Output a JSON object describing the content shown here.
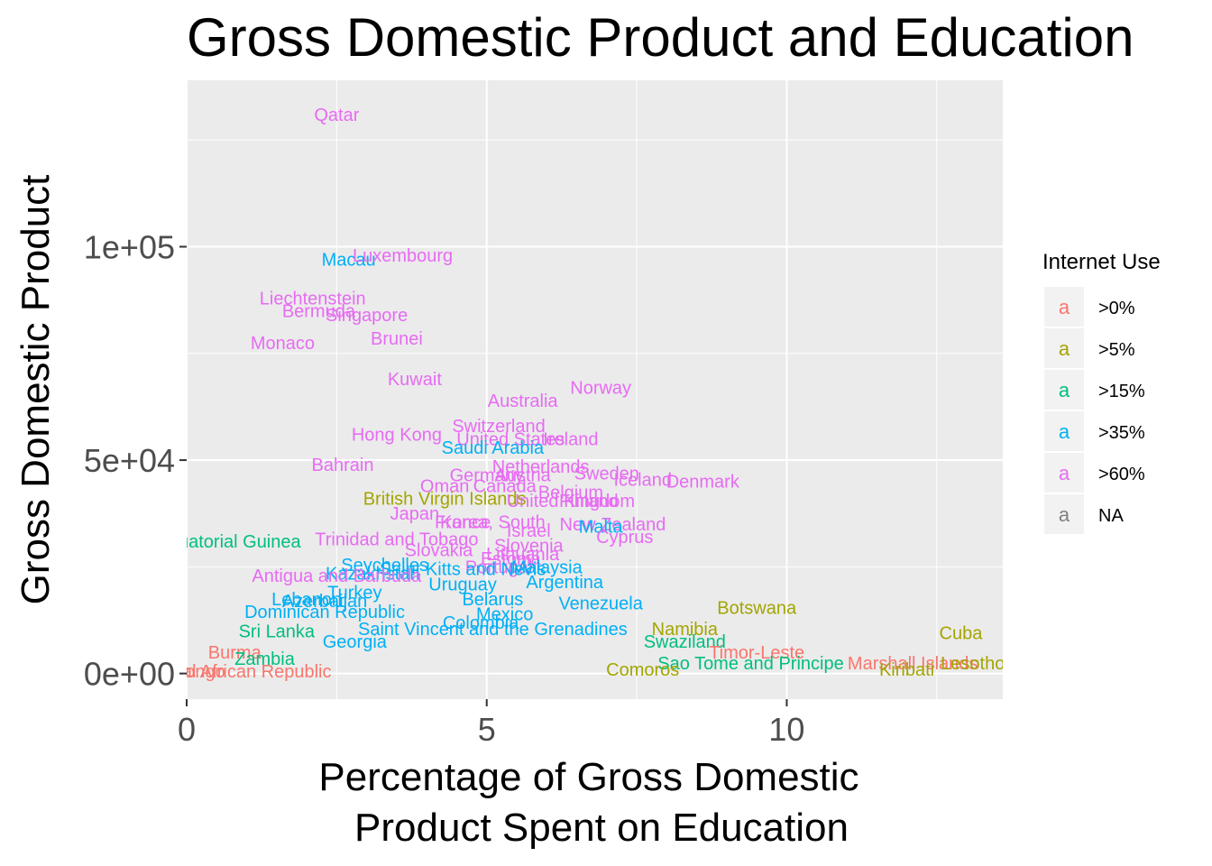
{
  "chart_data": {
    "type": "scatter",
    "title": "Gross Domestic Product and Education",
    "xlabel_lines": [
      "Percentage of Gross Domestic",
      "Product Spent on Education"
    ],
    "ylabel": "Gross Domestic Product",
    "xlim": [
      0,
      13.6
    ],
    "ylim": [
      -6000,
      139000
    ],
    "x_ticks": [
      {
        "value": 0,
        "label": "0"
      },
      {
        "value": 5,
        "label": "5"
      },
      {
        "value": 10,
        "label": "10"
      }
    ],
    "y_ticks": [
      {
        "value": 0,
        "label": "0e+00"
      },
      {
        "value": 50000,
        "label": "5e+04"
      },
      {
        "value": 100000,
        "label": "1e+05"
      }
    ],
    "grid": true,
    "legend": {
      "title": "Internet Use",
      "position": "right",
      "key_glyph": "a",
      "entries": [
        {
          "label": ">0%",
          "color": "#F8766D"
        },
        {
          "label": ">5%",
          "color": "#A3A500"
        },
        {
          "label": ">15%",
          "color": "#00BF7D"
        },
        {
          "label": ">35%",
          "color": "#00B0F6"
        },
        {
          "label": ">60%",
          "color": "#E76BF3"
        },
        {
          "label": "NA",
          "color": "#7F7F7F"
        }
      ]
    },
    "points": [
      {
        "label": "Qatar",
        "x": 2.5,
        "y": 131000,
        "group": ">60%"
      },
      {
        "label": "Macau",
        "x": 2.7,
        "y": 97000,
        "group": ">35%"
      },
      {
        "label": "Luxembourg",
        "x": 3.6,
        "y": 98000,
        "group": ">60%"
      },
      {
        "label": "Liechtenstein",
        "x": 2.1,
        "y": 88000,
        "group": ">60%"
      },
      {
        "label": "Bermuda",
        "x": 2.2,
        "y": 85000,
        "group": ">60%"
      },
      {
        "label": "Singapore",
        "x": 3.0,
        "y": 84000,
        "group": ">60%"
      },
      {
        "label": "Monaco",
        "x": 1.6,
        "y": 77500,
        "group": ">60%"
      },
      {
        "label": "Brunei",
        "x": 3.5,
        "y": 78500,
        "group": ">60%"
      },
      {
        "label": "Kuwait",
        "x": 3.8,
        "y": 69000,
        "group": ">60%"
      },
      {
        "label": "Norway",
        "x": 6.9,
        "y": 67000,
        "group": ">60%"
      },
      {
        "label": "Australia",
        "x": 5.6,
        "y": 64000,
        "group": ">60%"
      },
      {
        "label": "Switzerland",
        "x": 5.2,
        "y": 58000,
        "group": ">60%"
      },
      {
        "label": "Hong Kong",
        "x": 3.5,
        "y": 56000,
        "group": ">60%"
      },
      {
        "label": "United States",
        "x": 5.4,
        "y": 55000,
        "group": ">60%"
      },
      {
        "label": "Ireland",
        "x": 6.4,
        "y": 55000,
        "group": ">60%"
      },
      {
        "label": "Saudi Arabia",
        "x": 5.1,
        "y": 53000,
        "group": ">35%"
      },
      {
        "label": "Bahrain",
        "x": 2.6,
        "y": 49000,
        "group": ">60%"
      },
      {
        "label": "Netherlands",
        "x": 5.9,
        "y": 48500,
        "group": ">60%"
      },
      {
        "label": "Germany",
        "x": 5.0,
        "y": 46500,
        "group": ">60%"
      },
      {
        "label": "Austria",
        "x": 5.6,
        "y": 46500,
        "group": ">60%"
      },
      {
        "label": "Sweden",
        "x": 7.0,
        "y": 47000,
        "group": ">60%"
      },
      {
        "label": "Iceland",
        "x": 7.6,
        "y": 45500,
        "group": ">60%"
      },
      {
        "label": "Denmark",
        "x": 8.6,
        "y": 45000,
        "group": ">60%"
      },
      {
        "label": "Oman",
        "x": 4.3,
        "y": 44000,
        "group": ">60%"
      },
      {
        "label": "Canada",
        "x": 5.3,
        "y": 44000,
        "group": ">60%"
      },
      {
        "label": "Belgium",
        "x": 6.4,
        "y": 42500,
        "group": ">60%"
      },
      {
        "label": "British Virgin Islands",
        "x": 4.3,
        "y": 41000,
        "group": ">5%"
      },
      {
        "label": "United Kingdom",
        "x": 6.4,
        "y": 40500,
        "group": ">60%"
      },
      {
        "label": "Finland",
        "x": 6.7,
        "y": 40500,
        "group": ">60%"
      },
      {
        "label": "Japan",
        "x": 3.8,
        "y": 37500,
        "group": ">60%"
      },
      {
        "label": "France",
        "x": 4.6,
        "y": 35500,
        "group": ">60%"
      },
      {
        "label": "Korea, South",
        "x": 5.1,
        "y": 35500,
        "group": ">60%"
      },
      {
        "label": "Israel",
        "x": 5.7,
        "y": 33500,
        "group": ">60%"
      },
      {
        "label": "New Zealand",
        "x": 7.1,
        "y": 35000,
        "group": ">60%"
      },
      {
        "label": "Malta",
        "x": 6.9,
        "y": 34500,
        "group": ">35%"
      },
      {
        "label": "Cyprus",
        "x": 7.3,
        "y": 32000,
        "group": ">60%"
      },
      {
        "label": "Trinidad and Tobago",
        "x": 3.5,
        "y": 31500,
        "group": ">60%"
      },
      {
        "label": "Equatorial Guinea",
        "x": 0.7,
        "y": 31000,
        "group": ">15%"
      },
      {
        "label": "Slovenia",
        "x": 5.7,
        "y": 30000,
        "group": ">60%"
      },
      {
        "label": "Slovakia",
        "x": 4.2,
        "y": 29000,
        "group": ">60%"
      },
      {
        "label": "Estonia",
        "x": 5.4,
        "y": 27000,
        "group": ">60%"
      },
      {
        "label": "Lithuania",
        "x": 5.6,
        "y": 28000,
        "group": ">60%"
      },
      {
        "label": "Seychelles",
        "x": 3.3,
        "y": 25500,
        "group": ">35%"
      },
      {
        "label": "Portugal",
        "x": 5.2,
        "y": 25000,
        "group": ">60%"
      },
      {
        "label": "Malaysia",
        "x": 6.0,
        "y": 25000,
        "group": ">35%"
      },
      {
        "label": "Kazakhstan",
        "x": 3.1,
        "y": 23500,
        "group": ">35%"
      },
      {
        "label": "Saint Kitts and Nevis",
        "x": 4.6,
        "y": 24500,
        "group": ">35%"
      },
      {
        "label": "Antigua and Barbuda",
        "x": 2.5,
        "y": 23000,
        "group": ">60%"
      },
      {
        "label": "Argentina",
        "x": 6.3,
        "y": 21500,
        "group": ">35%"
      },
      {
        "label": "Uruguay",
        "x": 4.6,
        "y": 21000,
        "group": ">35%"
      },
      {
        "label": "Turkey",
        "x": 2.8,
        "y": 19000,
        "group": ">35%"
      },
      {
        "label": "Lebanon",
        "x": 2.0,
        "y": 17500,
        "group": ">35%"
      },
      {
        "label": "Azerbaijan",
        "x": 2.3,
        "y": 17000,
        "group": ">35%"
      },
      {
        "label": "Belarus",
        "x": 5.1,
        "y": 17500,
        "group": ">35%"
      },
      {
        "label": "Venezuela",
        "x": 6.9,
        "y": 16500,
        "group": ">35%"
      },
      {
        "label": "Botswana",
        "x": 9.5,
        "y": 15500,
        "group": ">5%"
      },
      {
        "label": "Dominican Republic",
        "x": 2.3,
        "y": 14500,
        "group": ">35%"
      },
      {
        "label": "Mexico",
        "x": 5.3,
        "y": 14000,
        "group": ">35%"
      },
      {
        "label": "Colombia",
        "x": 4.9,
        "y": 12000,
        "group": ">35%"
      },
      {
        "label": "Namibia",
        "x": 8.3,
        "y": 10500,
        "group": ">5%"
      },
      {
        "label": "Sri Lanka",
        "x": 1.5,
        "y": 10000,
        "group": ">15%"
      },
      {
        "label": "Saint Vincent and the Grenadines",
        "x": 5.1,
        "y": 10500,
        "group": ">35%"
      },
      {
        "label": "Cuba",
        "x": 12.9,
        "y": 9500,
        "group": ">5%"
      },
      {
        "label": "Georgia",
        "x": 2.8,
        "y": 7500,
        "group": ">35%"
      },
      {
        "label": "Swaziland",
        "x": 8.3,
        "y": 7500,
        "group": ">15%"
      },
      {
        "label": "Burma",
        "x": 0.8,
        "y": 5000,
        "group": ">0%"
      },
      {
        "label": "Timor-Leste",
        "x": 9.5,
        "y": 5000,
        "group": ">0%"
      },
      {
        "label": "Zambia",
        "x": 1.3,
        "y": 3500,
        "group": ">15%"
      },
      {
        "label": "Sao Tome and Principe",
        "x": 9.4,
        "y": 2500,
        "group": ">15%"
      },
      {
        "label": "Marshall Islands",
        "x": 12.1,
        "y": 2500,
        "group": ">0%"
      },
      {
        "label": "Lesotho",
        "x": 13.1,
        "y": 2500,
        "group": ">5%"
      },
      {
        "label": "Kiribati",
        "x": 12.0,
        "y": 1000,
        "group": ">5%"
      },
      {
        "label": "Comoros",
        "x": 7.6,
        "y": 1000,
        "group": ">5%"
      },
      {
        "label": "Central African Republic",
        "x": 0.8,
        "y": 500,
        "group": ">0%"
      },
      {
        "label": "Congo",
        "x": 0.2,
        "y": 500,
        "group": ">0%"
      }
    ]
  }
}
